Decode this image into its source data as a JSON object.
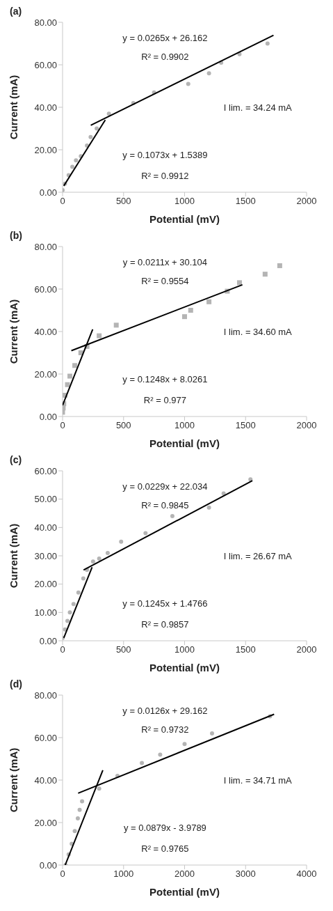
{
  "chart_data": [
    {
      "type": "scatter",
      "title": "(a)",
      "xlabel": "Potential (mV)",
      "ylabel": "Current (mA)",
      "xlim": [
        0,
        2000
      ],
      "xticks": [
        0,
        500,
        1000,
        1500,
        2000
      ],
      "ylim": [
        0,
        80
      ],
      "yticks": [
        {
          "value": 0,
          "label": "0.00"
        },
        {
          "value": 20,
          "label": "20.00"
        },
        {
          "value": 40,
          "label": "40.00"
        },
        {
          "value": 60,
          "label": "60.00"
        },
        {
          "value": 80,
          "label": "80.00"
        }
      ],
      "grid": false,
      "legend": false,
      "marker": "circle",
      "series": [
        {
          "type": "scatter",
          "color": "#b4b4b4",
          "x": [
            0,
            20,
            50,
            80,
            110,
            150,
            200,
            230,
            280,
            380,
            580,
            750,
            1030,
            1200,
            1300,
            1450,
            1680
          ],
          "values": [
            1,
            4,
            8,
            12,
            15,
            17,
            22,
            26,
            30,
            37,
            42,
            47,
            51,
            56,
            61,
            65,
            70
          ]
        },
        {
          "type": "line",
          "color": "#000000",
          "marker": "none",
          "x": [
            10,
            350
          ],
          "values": [
            3,
            34
          ]
        },
        {
          "type": "line",
          "color": "#000000",
          "marker": "none",
          "x": [
            231,
            1729
          ],
          "values": [
            31.5,
            73.9
          ]
        }
      ],
      "annotations": [
        "y = 0.0265x + 26.162",
        "R² = 0.9902",
        "I lim. = 34.24 mA",
        "y = 0.1073x + 1.5389",
        "R² = 0.9912"
      ]
    },
    {
      "type": "scatter",
      "title": "(b)",
      "xlabel": "Potential (mV)",
      "ylabel": "Current (mA)",
      "xlim": [
        0,
        2000
      ],
      "xticks": [
        0,
        500,
        1000,
        1500,
        2000
      ],
      "ylim": [
        0,
        80
      ],
      "yticks": [
        {
          "value": 0,
          "label": "0.00"
        },
        {
          "value": 20,
          "label": "20.00"
        },
        {
          "value": 40,
          "label": "40.00"
        },
        {
          "value": 60,
          "label": "60.00"
        },
        {
          "value": 80,
          "label": "80.00"
        }
      ],
      "grid": false,
      "legend": false,
      "marker": "square",
      "series": [
        {
          "type": "scatter",
          "color": "#b4b4b4",
          "x": [
            0,
            5,
            10,
            20,
            40,
            60,
            100,
            150,
            200,
            300,
            440,
            1000,
            1050,
            1200,
            1350,
            1450,
            1660,
            1780
          ],
          "values": [
            2,
            4,
            6,
            10,
            15,
            19,
            24,
            30,
            33,
            38,
            43,
            47,
            50,
            54,
            59,
            63,
            67,
            71
          ]
        },
        {
          "type": "line",
          "color": "#000000",
          "marker": "none",
          "x": [
            0,
            247
          ],
          "values": [
            5.3,
            41
          ]
        },
        {
          "type": "line",
          "color": "#000000",
          "marker": "none",
          "x": [
            72,
            1474
          ],
          "values": [
            31,
            62
          ]
        }
      ],
      "annotations": [
        "y = 0.0211x + 30.104",
        "R² = 0.9554",
        "I lim. = 34.60 mA",
        "y = 0.1248x + 8.0261",
        "R² = 0.977"
      ]
    },
    {
      "type": "scatter",
      "title": "(c)",
      "xlabel": "Potential (mV)",
      "ylabel": "Current (mA)",
      "xlim": [
        0,
        2000
      ],
      "xticks": [
        0,
        500,
        1000,
        1500,
        2000
      ],
      "ylim": [
        0,
        60
      ],
      "yticks": [
        {
          "value": 0,
          "label": "0.00"
        },
        {
          "value": 10,
          "label": "10.00"
        },
        {
          "value": 20,
          "label": "20.00"
        },
        {
          "value": 30,
          "label": "30.00"
        },
        {
          "value": 40,
          "label": "40.00"
        },
        {
          "value": 50,
          "label": "50.00"
        },
        {
          "value": 60,
          "label": "60.00"
        }
      ],
      "grid": false,
      "legend": false,
      "marker": "circle",
      "series": [
        {
          "type": "scatter",
          "color": "#b4b4b4",
          "x": [
            0,
            20,
            40,
            60,
            90,
            130,
            170,
            200,
            250,
            300,
            370,
            480,
            680,
            900,
            1200,
            1320,
            1540
          ],
          "values": [
            1,
            4,
            7,
            10,
            13,
            17,
            22,
            25,
            28,
            29,
            31,
            35,
            38,
            44,
            47,
            52,
            57
          ]
        },
        {
          "type": "line",
          "color": "#000000",
          "marker": "none",
          "x": [
            10,
            242
          ],
          "values": [
            1,
            26
          ]
        },
        {
          "type": "line",
          "color": "#000000",
          "marker": "none",
          "x": [
            172,
            1556
          ],
          "values": [
            25,
            56.5
          ]
        }
      ],
      "annotations": [
        "y = 0.0229x + 22.034",
        "R² = 0.9845",
        "I lim. = 26.67 mA",
        "y = 0.1245x + 1.4766",
        "R² = 0.9857"
      ]
    },
    {
      "type": "scatter",
      "title": "(d)",
      "xlabel": "Potential (mV)",
      "ylabel": "Current (mA)",
      "xlim": [
        0,
        4000
      ],
      "xticks": [
        0,
        1000,
        2000,
        3000,
        4000
      ],
      "ylim": [
        0,
        80
      ],
      "yticks": [
        {
          "value": 0,
          "label": "0.00"
        },
        {
          "value": 20,
          "label": "20.00"
        },
        {
          "value": 40,
          "label": "40.00"
        },
        {
          "value": 60,
          "label": "60.00"
        },
        {
          "value": 80,
          "label": "80.00"
        }
      ],
      "grid": false,
      "legend": false,
      "marker": "circle",
      "series": [
        {
          "type": "scatter",
          "color": "#b4b4b4",
          "x": [
            50,
            100,
            150,
            200,
            250,
            280,
            320,
            600,
            900,
            1300,
            1600,
            2000,
            2450,
            3400
          ],
          "values": [
            0,
            5,
            10,
            16,
            22,
            26,
            30,
            36,
            42,
            48,
            52,
            57,
            62,
            70
          ]
        },
        {
          "type": "line",
          "color": "#000000",
          "marker": "none",
          "x": [
            43,
            660
          ],
          "values": [
            0,
            44.6
          ]
        },
        {
          "type": "line",
          "color": "#000000",
          "marker": "none",
          "x": [
            255,
            3468
          ],
          "values": [
            33.8,
            71
          ]
        }
      ],
      "annotations": [
        "y = 0.0126x + 29.162",
        "R² = 0.9732",
        "I lim. = 34.71 mA",
        "y = 0.0879x - 3.9789",
        "R² = 0.9765"
      ]
    }
  ]
}
